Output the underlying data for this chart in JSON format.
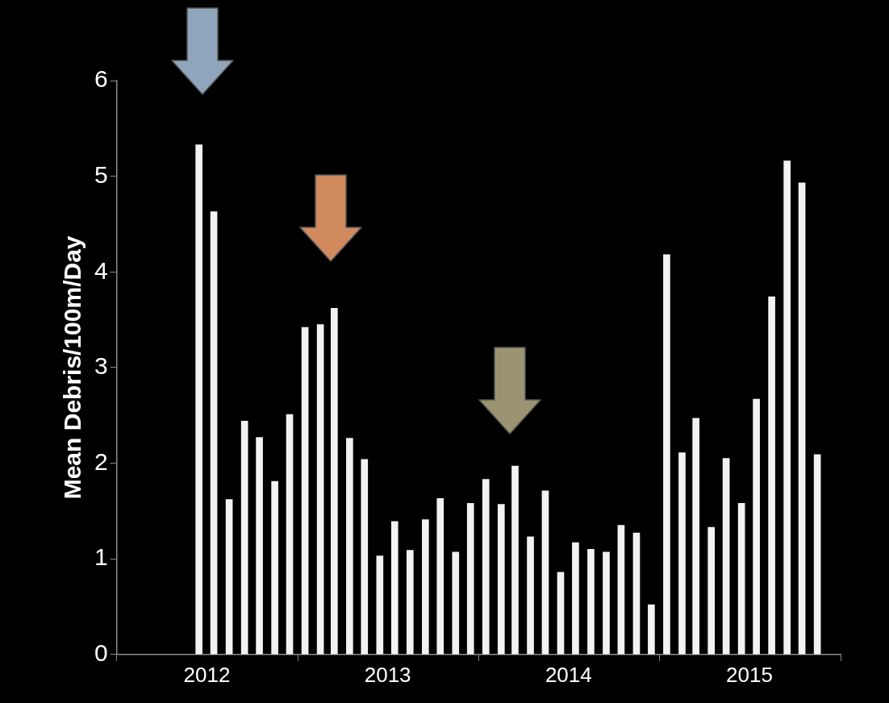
{
  "chart_data": {
    "type": "bar",
    "ylabel": "Mean Debris/100m/Day",
    "x": [
      "2012-06-15",
      "2012-07-15",
      "2012-08-15",
      "2012-09-15",
      "2012-10-15",
      "2012-11-15",
      "2012-12-15",
      "2013-01-15",
      "2013-02-15",
      "2013-03-15",
      "2013-04-15",
      "2013-05-15",
      "2013-06-15",
      "2013-07-15",
      "2013-08-15",
      "2013-09-15",
      "2013-10-15",
      "2013-11-15",
      "2013-12-15",
      "2014-01-15",
      "2014-02-15",
      "2014-03-15",
      "2014-04-15",
      "2014-05-15",
      "2014-06-15",
      "2014-07-15",
      "2014-08-15",
      "2014-09-15",
      "2014-10-15",
      "2014-11-15",
      "2014-12-15",
      "2015-01-15",
      "2015-02-15",
      "2015-03-15",
      "2015-04-15",
      "2015-05-15",
      "2015-06-15",
      "2015-07-15",
      "2015-08-15",
      "2015-09-15",
      "2015-10-15",
      "2015-11-15"
    ],
    "values": [
      5.33,
      4.63,
      1.62,
      2.44,
      2.27,
      1.81,
      2.51,
      3.42,
      3.45,
      3.62,
      2.26,
      2.04,
      1.03,
      1.39,
      1.09,
      1.41,
      1.63,
      1.07,
      1.58,
      1.83,
      1.57,
      1.97,
      1.23,
      1.71,
      0.86,
      1.17,
      1.1,
      1.07,
      1.35,
      1.27,
      0.52,
      4.18,
      2.11,
      2.47,
      1.33,
      2.05,
      1.58,
      2.67,
      3.74,
      5.16,
      4.93,
      2.09
    ],
    "color": "#f2f2f2",
    "xlim": [
      "2012-01",
      "2016-01"
    ],
    "xticks": [
      {
        "value": "2012-01",
        "label": null
      },
      {
        "value": "2012-07",
        "label": "2012"
      },
      {
        "value": "2013-01",
        "label": null
      },
      {
        "value": "2013-07",
        "label": "2013"
      },
      {
        "value": "2014-01",
        "label": null
      },
      {
        "value": "2014-07",
        "label": "2014"
      },
      {
        "value": "2015-01",
        "label": null
      },
      {
        "value": "2015-07",
        "label": "2015"
      },
      {
        "value": "2016-01",
        "label": null
      }
    ],
    "ylim": [
      0,
      6
    ],
    "yticks": [
      0,
      1,
      2,
      3,
      4,
      5,
      6
    ]
  }
}
